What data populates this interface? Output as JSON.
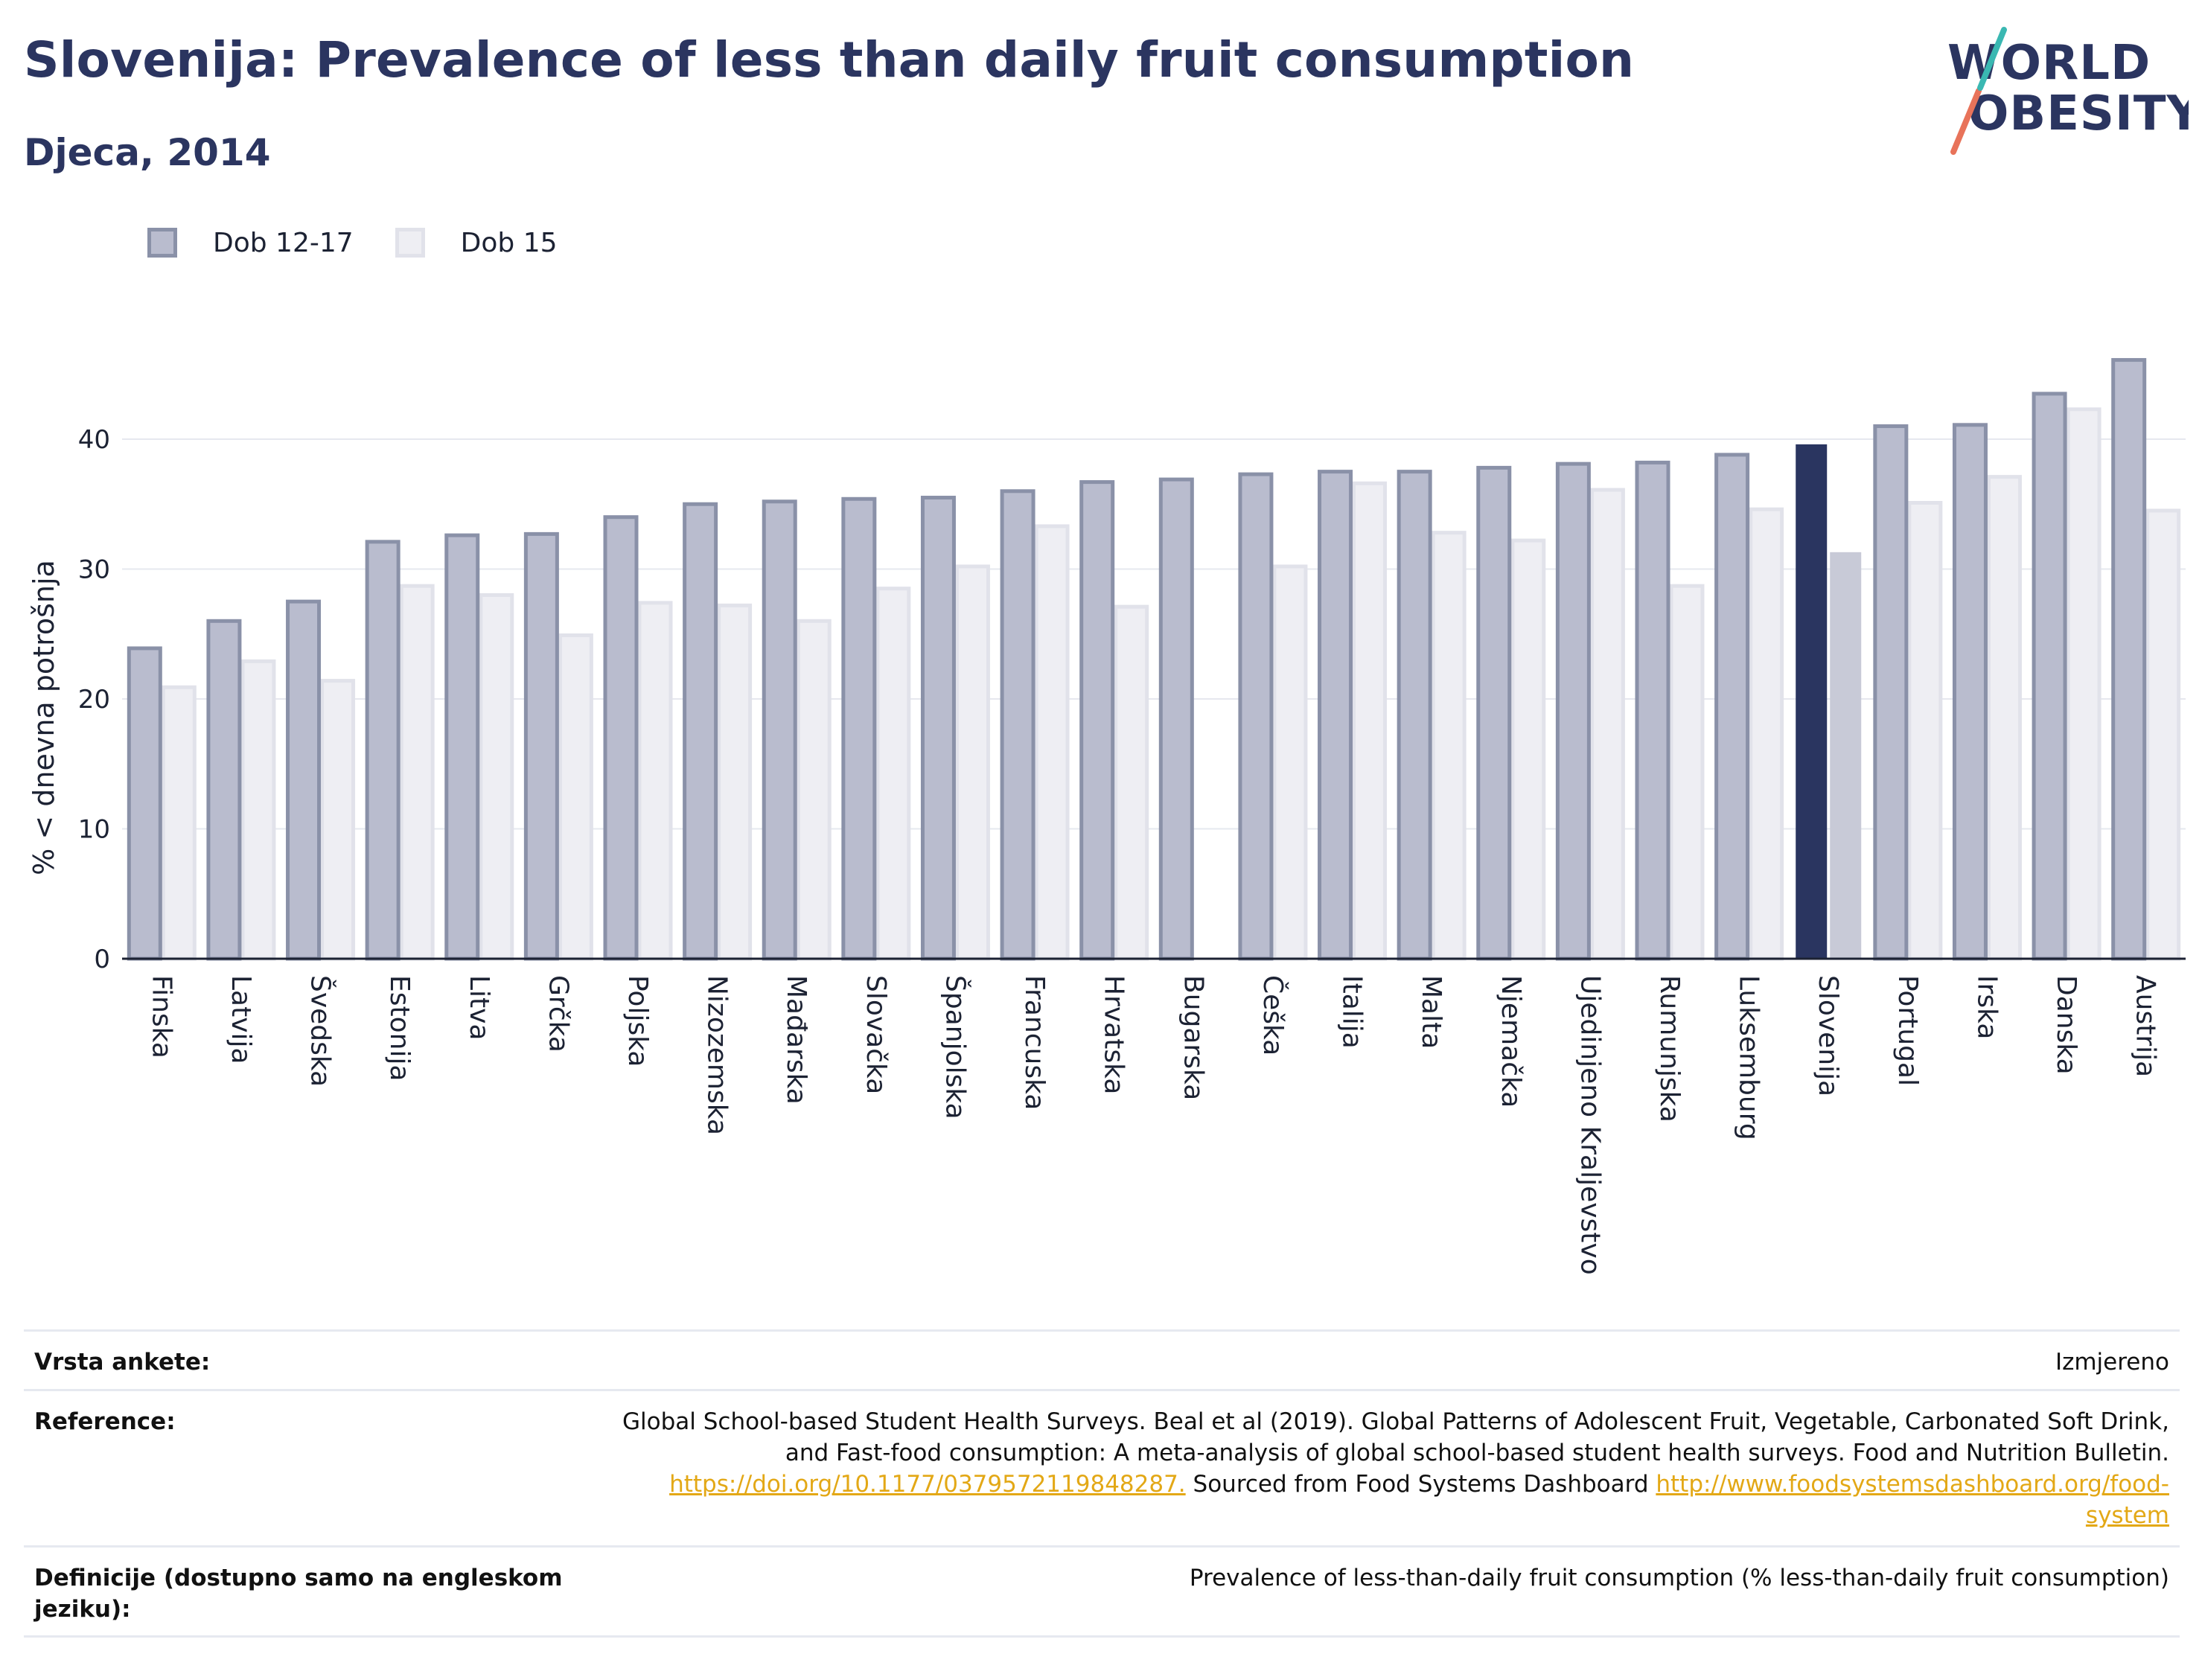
{
  "title": "Slovenija: Prevalence of less than daily fruit consumption",
  "subtitle": "Djeca, 2014",
  "logo": {
    "line1": "WORLD",
    "line2": "OBESITY"
  },
  "legend": [
    {
      "label": "Dob 12-17",
      "color": "#b9bcce",
      "border": "#8a91a8"
    },
    {
      "label": "Dob 15",
      "color": "#eeeef3",
      "border": "#e1e2ea"
    }
  ],
  "colors": {
    "highlight": "#2a3560",
    "highlight_secondary": "#c8cad7",
    "axis": "#1c2233",
    "grid": "#e6e8ef"
  },
  "chart_data": {
    "type": "bar",
    "ylabel": "% < dnevna potrošnja",
    "ylim": [
      0,
      48
    ],
    "yticks": [
      0,
      10,
      20,
      30,
      40
    ],
    "highlight": "Slovenija",
    "categories": [
      "Finska",
      "Latvija",
      "Švedska",
      "Estonija",
      "Litva",
      "Grčka",
      "Poljska",
      "Nizozemska",
      "Mađarska",
      "Slovačka",
      "Španjolska",
      "Francuska",
      "Hrvatska",
      "Bugarska",
      "Češka",
      "Italija",
      "Malta",
      "Njemačka",
      "Ujedinjeno Kraljevstvo",
      "Rumunjska",
      "Luksemburg",
      "Slovenija",
      "Portugal",
      "Irska",
      "Danska",
      "Austrija"
    ],
    "series": [
      {
        "name": "Dob 12-17",
        "values": [
          23.9,
          26.0,
          27.5,
          32.1,
          32.6,
          32.7,
          34.0,
          35.0,
          35.2,
          35.4,
          35.5,
          36.0,
          36.7,
          36.9,
          37.3,
          37.5,
          37.5,
          37.8,
          38.1,
          38.2,
          38.8,
          39.6,
          41.0,
          41.1,
          43.5,
          46.1
        ]
      },
      {
        "name": "Dob 15",
        "values": [
          20.9,
          22.9,
          21.4,
          28.7,
          28.0,
          24.9,
          27.4,
          27.2,
          26.0,
          28.5,
          30.2,
          33.3,
          27.1,
          null,
          30.2,
          36.6,
          32.8,
          32.2,
          36.1,
          28.7,
          34.6,
          31.3,
          35.1,
          37.1,
          42.3,
          34.5
        ]
      }
    ]
  },
  "meta": {
    "survey_label": "Vrsta ankete:",
    "survey_value": "Izmjereno",
    "reference_label": "Reference:",
    "reference_line1": "Global School-based Student Health Surveys. Beal et al (2019). Global Patterns of Adolescent Fruit, Vegetable, Carbonated Soft Drink,",
    "reference_line2": "and Fast-food consumption: A meta-analysis of global school-based student health surveys. Food and Nutrition Bulletin.",
    "reference_link1": "https://doi.org/10.1177/0379572119848287.",
    "reference_mid": " Sourced from Food Systems Dashboard ",
    "reference_link2a": "http://www.foodsystemsdashboard.org/food-",
    "reference_link2b": "system",
    "definition_label": "Definicije (dostupno samo na engleskom jeziku):",
    "definition_value": "Prevalence of less-than-daily fruit consumption (% less-than-daily fruit consumption)"
  }
}
